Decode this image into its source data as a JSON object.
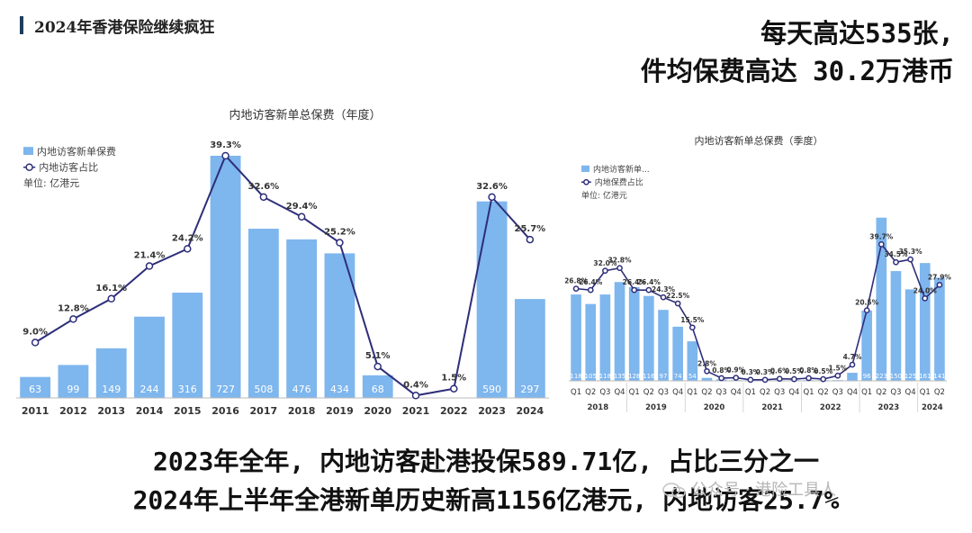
{
  "header": {
    "title": "2024年香港保险继续疯狂"
  },
  "headline": {
    "line1": "每天高达535张,",
    "line2": "件均保费高达 30.2万港币"
  },
  "footer": {
    "line1": "2023年全年, 内地访客赴港投保589.71亿, 占比三分之一",
    "line2": "2024年上半年全港新单历史新高1156亿港元, 内地访客25.7%"
  },
  "watermark": {
    "text": "公众号 · 港险工具人"
  },
  "colors": {
    "bar": "#7eb6ee",
    "line": "#2e2e7a",
    "bar_label": "#ffffff"
  },
  "chart_data": [
    {
      "type": "bar",
      "title": "内地访客新单总保费（年度）",
      "legend": [
        "内地访客新单保费",
        "内地访客占比"
      ],
      "unit": "单位: 亿港元",
      "categories": [
        "2011",
        "2012",
        "2013",
        "2014",
        "2015",
        "2016",
        "2017",
        "2018",
        "2019",
        "2020",
        "2021",
        "2022",
        "2023",
        "2024"
      ],
      "series": [
        {
          "name": "内地访客新单保费",
          "type": "bar",
          "values": [
            63,
            99,
            149,
            244,
            316,
            727,
            508,
            476,
            434,
            68,
            null,
            null,
            590,
            297
          ]
        },
        {
          "name": "内地访客占比",
          "type": "line",
          "values": [
            9.0,
            12.8,
            16.1,
            21.4,
            24.2,
            39.3,
            32.6,
            29.4,
            25.2,
            5.1,
            0.4,
            1.5,
            32.6,
            25.7
          ]
        }
      ],
      "bar_labels": [
        "63",
        "99",
        "149",
        "244",
        "316",
        "727",
        "508",
        "476",
        "434",
        "68",
        "",
        "",
        "590",
        "297"
      ],
      "pct_labels": [
        "9.0%",
        "12.8%",
        "16.1%",
        "21.4%",
        "24.2%",
        "39.3%",
        "32.6%",
        "29.4%",
        "25.2%",
        "5.1%",
        "0.4%",
        "1.5%",
        "32.6%",
        "25.7%"
      ]
    },
    {
      "type": "bar",
      "title": "内地访客新单总保费（季度）",
      "legend": [
        "内地访客新单...",
        "内地保费占比"
      ],
      "unit": "单位: 亿港元",
      "quarters": [
        "Q1",
        "Q2",
        "Q3",
        "Q4",
        "Q1",
        "Q2",
        "Q3",
        "Q4",
        "Q1",
        "Q2",
        "Q3",
        "Q4",
        "Q1",
        "Q2",
        "Q3",
        "Q4",
        "Q1",
        "Q2",
        "Q3",
        "Q4",
        "Q1",
        "Q2",
        "Q3",
        "Q4",
        "Q1",
        "Q2"
      ],
      "years": [
        "2018",
        "2019",
        "2020",
        "2021",
        "2022",
        "2023",
        "2024"
      ],
      "series": [
        {
          "name": "内地访客新单...",
          "type": "bar",
          "values": [
            118,
            105,
            118,
            135,
            128,
            116,
            97,
            74,
            54,
            4,
            2,
            1,
            1,
            1,
            1,
            1,
            1,
            1,
            1,
            11,
            96,
            223,
            150,
            125,
            161,
            141
          ]
        },
        {
          "name": "内地保费占比",
          "type": "line",
          "values": [
            26.8,
            26.4,
            32.0,
            32.8,
            26.4,
            26.4,
            24.3,
            22.5,
            15.5,
            2.8,
            0.8,
            0.9,
            0.3,
            0.3,
            0.6,
            0.5,
            0.8,
            0.5,
            1.5,
            4.7,
            20.5,
            39.7,
            34.5,
            35.3,
            24.0,
            27.9
          ]
        }
      ],
      "bar_labels": [
        "118",
        "105",
        "118",
        "135",
        "128",
        "116",
        "97",
        "74",
        "54",
        "",
        "",
        "",
        "",
        "",
        "",
        "",
        "",
        "",
        "",
        "",
        "96",
        "223",
        "150",
        "125",
        "161",
        "141"
      ],
      "pct_labels": [
        "26.8%",
        "26.4%",
        "32.0%",
        "32.8%",
        "26.4%",
        "26.4%",
        "24.3%",
        "22.5%",
        "15.5%",
        "2.8%",
        "0.8%",
        "0.9%",
        "0.3%",
        "0.3%",
        "0.6%",
        "0.5%",
        "0.8%",
        "0.5%",
        "1.5%",
        "4.7%",
        "20.5%",
        "39.7%",
        "34.5%",
        "35.3%",
        "24.0%",
        "27.9%"
      ]
    }
  ]
}
